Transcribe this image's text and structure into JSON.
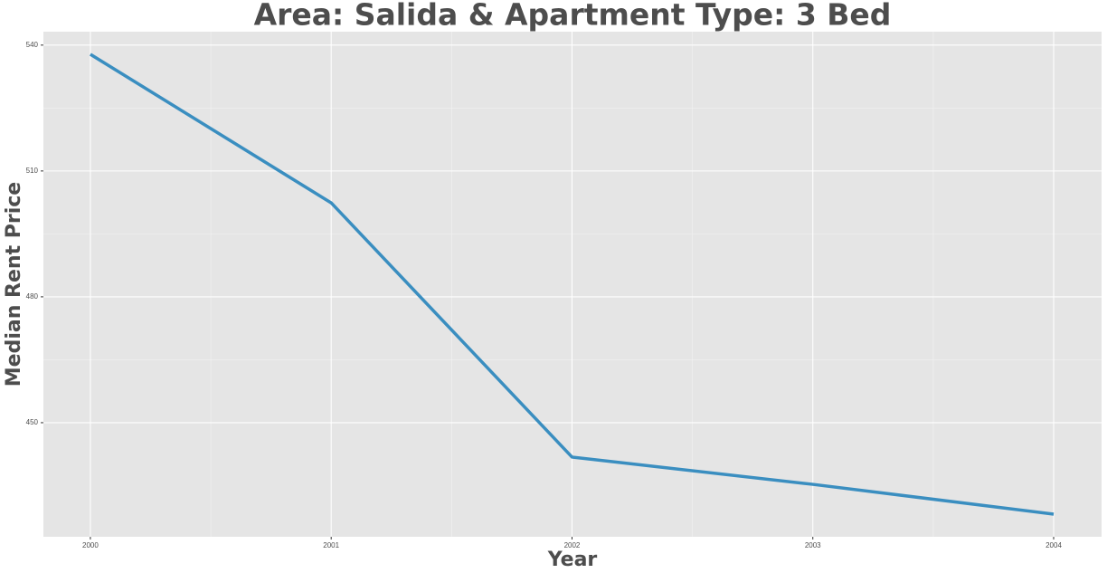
{
  "chart_data": {
    "type": "line",
    "title": "Area: Salida & Apartment Type: 3 Bed",
    "x_label": "Year",
    "y_label": "Median Rent Price",
    "x": [
      2000,
      2001,
      2002,
      2003,
      2004
    ],
    "series": [
      {
        "name": "Median Rent Price",
        "color": "#3a8ec0",
        "values": [
          537.8,
          502.4,
          441.8,
          435.3,
          428.2
        ]
      }
    ],
    "xlim": [
      1999.805,
      2004.199
    ],
    "xticks": [
      2000,
      2001,
      2002,
      2003,
      2004
    ],
    "ylim": [
      422.8,
      543.2
    ],
    "yticks": [
      450,
      480,
      510,
      540
    ],
    "grid": true,
    "legend": false
  }
}
